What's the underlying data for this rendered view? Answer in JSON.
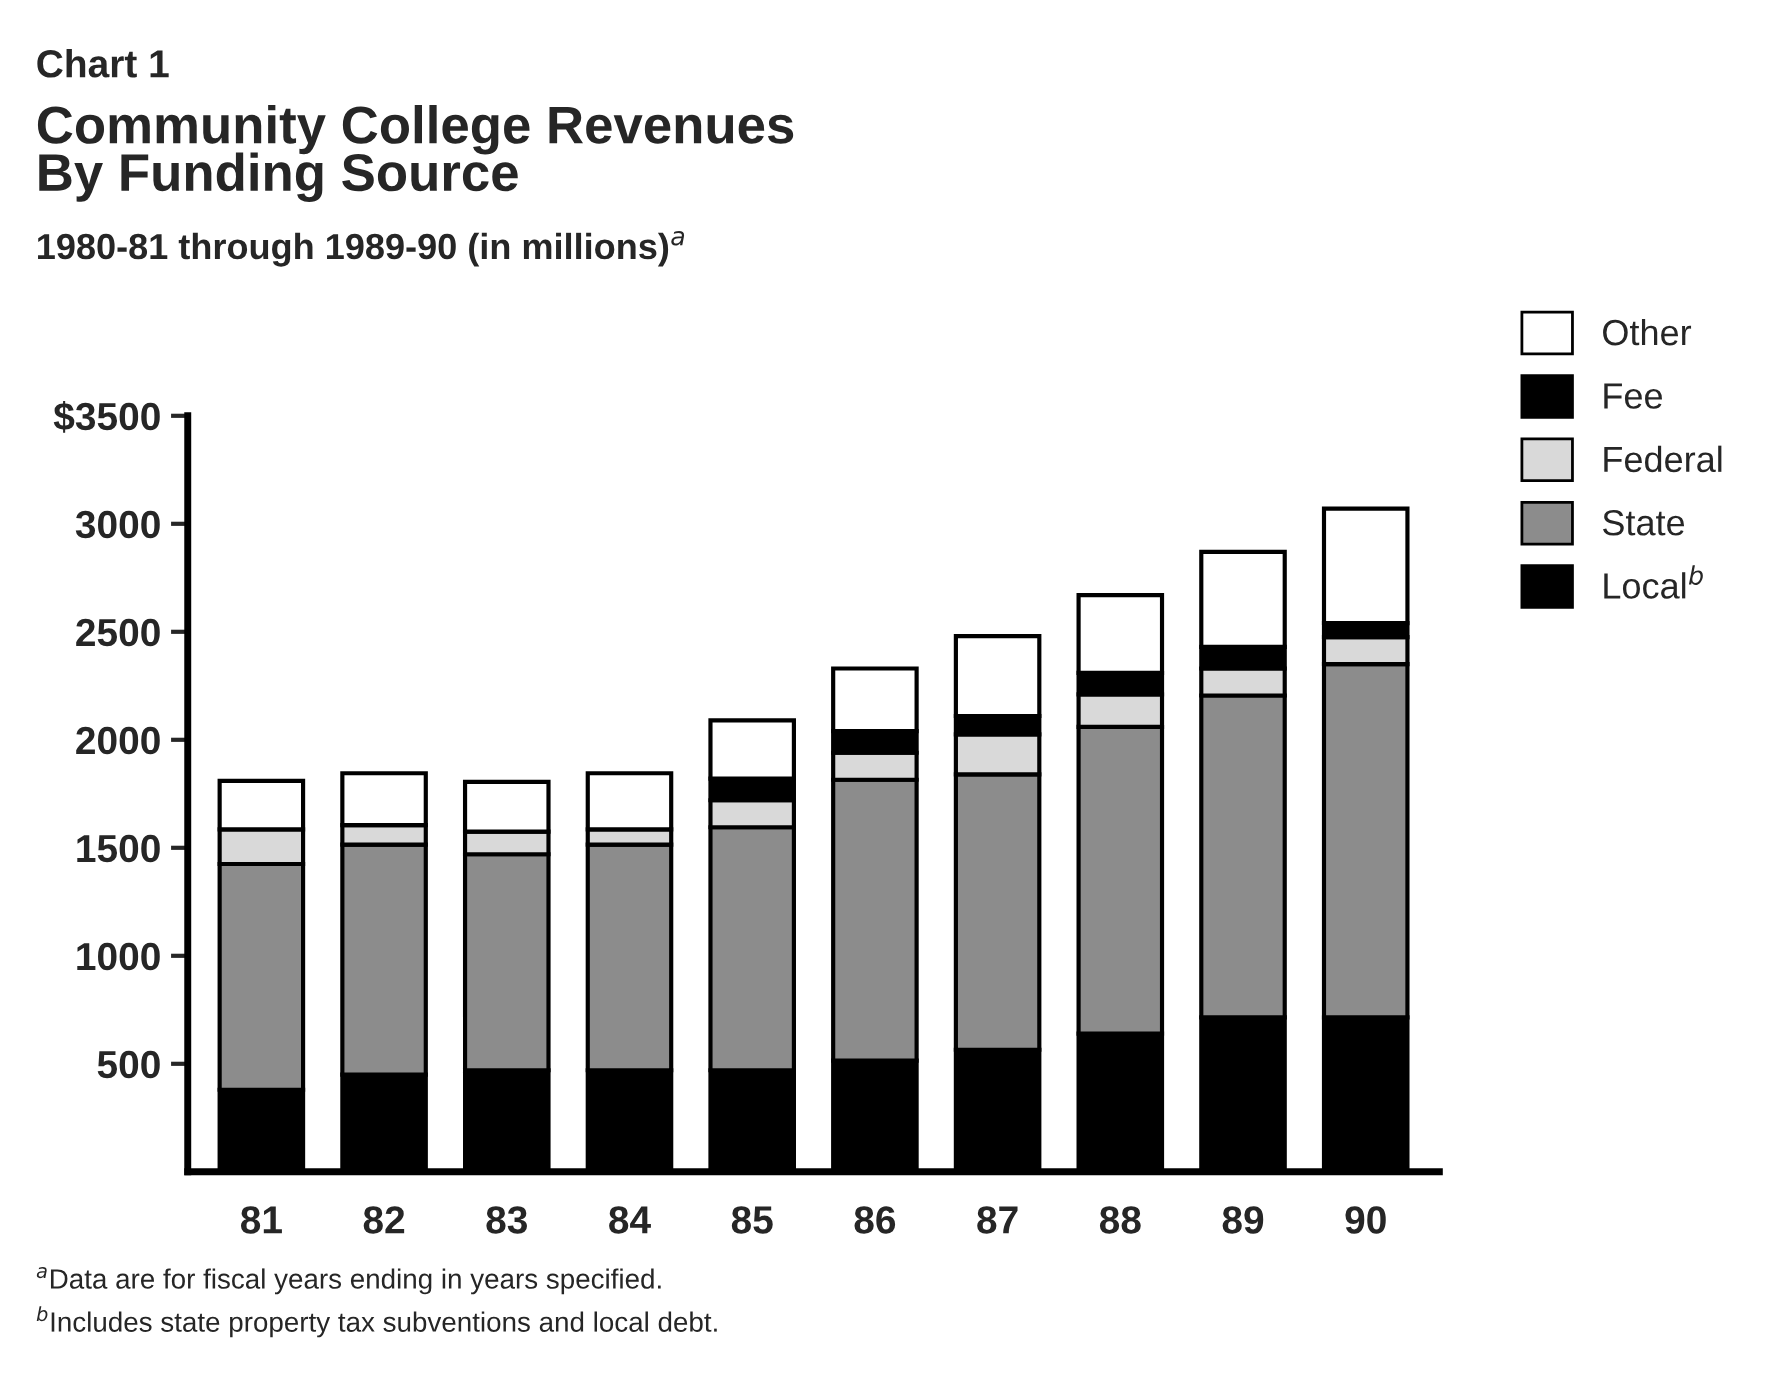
{
  "chart_data": {
    "type": "bar",
    "stacked": true,
    "title": "Community College Revenues\nBy Funding Source",
    "subtitle": "1980-81 through 1989-90 (in millions)$^{a}$",
    "annotations": [
      "Chart 1",
      "$^{a}$Data are for fiscal years ending in years specified.",
      "$^{b}$Includes state property tax subventions and local debt."
    ],
    "categories": [
      "81",
      "82",
      "83",
      "84",
      "85",
      "86",
      "87",
      "88",
      "89",
      "90"
    ],
    "series": [
      {
        "name": "Local$^{b}$",
        "color": "#000000",
        "values": [
          380,
          450,
          470,
          470,
          470,
          515,
          565,
          640,
          715,
          715
        ]
      },
      {
        "name": "State",
        "color": "#8c8c8c",
        "values": [
          1045,
          1065,
          1000,
          1045,
          1125,
          1300,
          1275,
          1420,
          1490,
          1635
        ]
      },
      {
        "name": "Federal",
        "color": "#d9d9d9",
        "values": [
          160,
          90,
          105,
          70,
          125,
          125,
          185,
          150,
          125,
          125
        ]
      },
      {
        "name": "Fee",
        "color": "#000000",
        "values": [
          0,
          0,
          0,
          0,
          100,
          100,
          85,
          100,
          100,
          65
        ]
      },
      {
        "name": "Other",
        "color": "#ffffff",
        "values": [
          225,
          240,
          230,
          260,
          270,
          290,
          370,
          360,
          440,
          530
        ]
      }
    ],
    "ylim": [
      0,
      3500
    ],
    "yticks": [
      500,
      1000,
      1500,
      2000,
      2500,
      3000,
      {
        "value": 3500,
        "label": "$3500"
      }
    ],
    "grid": false,
    "legend": "top right"
  }
}
